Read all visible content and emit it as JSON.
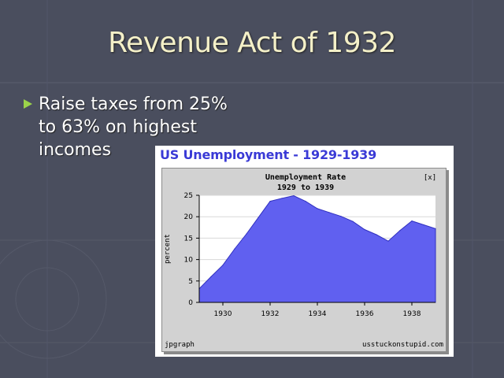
{
  "slide": {
    "title": "Revenue Act of 1932",
    "bullet": "Raise taxes from 25% to 63% on highest incomes"
  },
  "chart_card": {
    "header": "US Unemployment - 1929-1939",
    "footer_left": "jpgraph",
    "footer_right": "usstuckonstupid.com",
    "close_label": "[x]"
  },
  "colors": {
    "background": "#4a4e5e",
    "title": "#f4f0c8",
    "bullet_arrow": "#9bd34a",
    "header_text": "#3a3ad6",
    "area_fill": "#6060f0",
    "area_stroke": "#3030c0"
  },
  "chart_data": {
    "type": "area",
    "title": "Unemployment Rate",
    "subtitle": "1929 to 1939",
    "xlabel": "",
    "ylabel": "percent",
    "x": [
      1929.0,
      1929.5,
      1930.0,
      1930.5,
      1931.0,
      1931.5,
      1932.0,
      1932.5,
      1933.0,
      1933.5,
      1934.0,
      1934.5,
      1935.0,
      1935.5,
      1936.0,
      1936.5,
      1937.0,
      1937.5,
      1938.0,
      1938.5,
      1939.0
    ],
    "values": [
      3.2,
      6.0,
      8.7,
      12.5,
      16.0,
      19.8,
      23.6,
      24.3,
      24.9,
      23.6,
      21.9,
      21.0,
      20.1,
      18.9,
      17.0,
      15.8,
      14.3,
      16.8,
      19.0,
      18.1,
      17.2
    ],
    "xlim": [
      1929,
      1939
    ],
    "ylim": [
      0,
      25
    ],
    "x_ticks": [
      1930,
      1932,
      1934,
      1936,
      1938
    ],
    "y_ticks": [
      0,
      5,
      10,
      15,
      20,
      25
    ],
    "grid": true,
    "legend": "none"
  }
}
